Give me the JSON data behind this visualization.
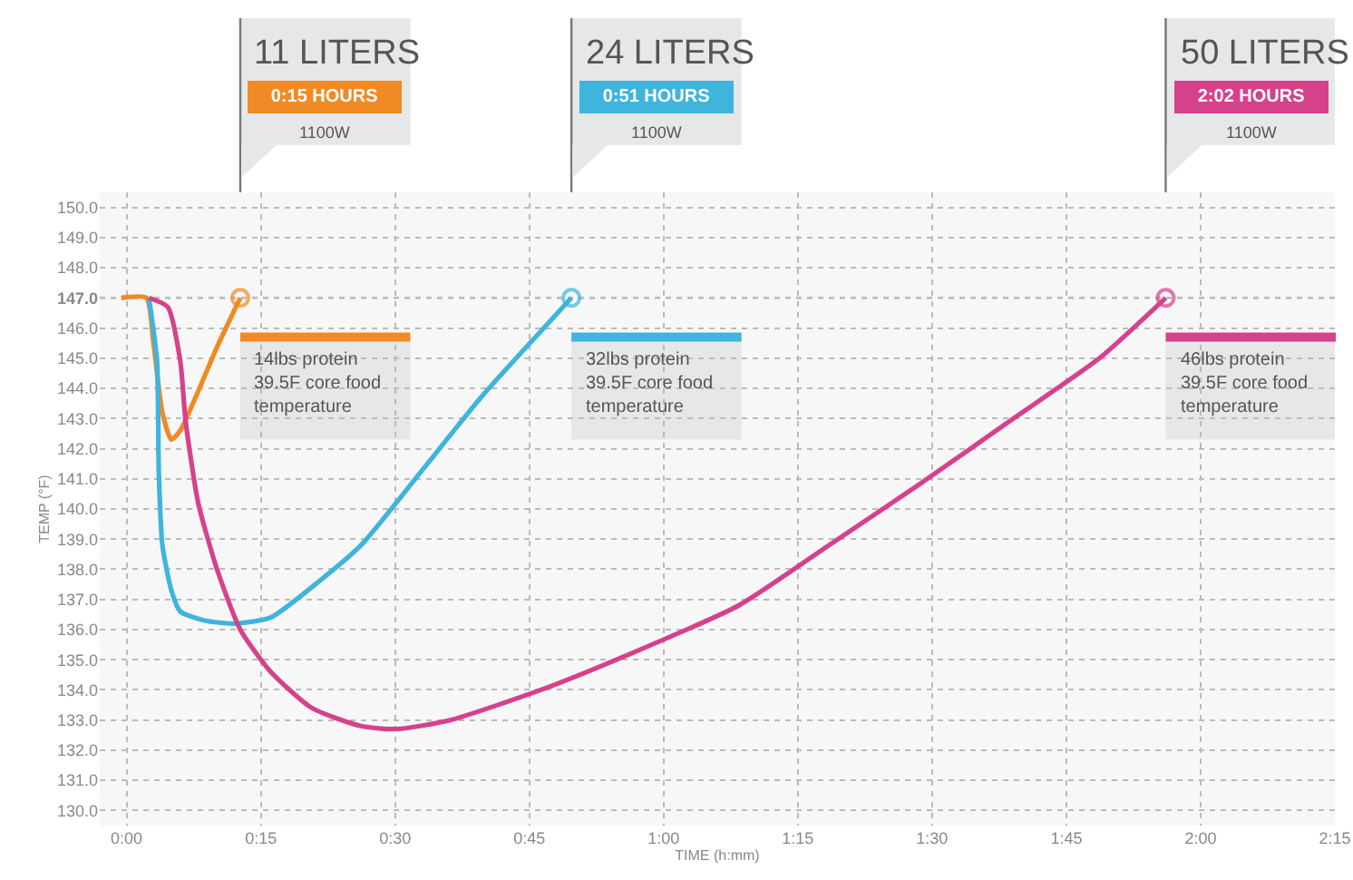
{
  "chart_data": {
    "type": "line",
    "xlabel": "TIME (h:mm)",
    "ylabel": "TEMP (°F)",
    "xlim": [
      -3,
      135
    ],
    "xticks": [
      {
        "value": 0,
        "label": "0:00"
      },
      {
        "value": 15,
        "label": "0:15"
      },
      {
        "value": 30,
        "label": "0:30"
      },
      {
        "value": 45,
        "label": "0:45"
      },
      {
        "value": 60,
        "label": "1:00"
      },
      {
        "value": 75,
        "label": "1:15"
      },
      {
        "value": 90,
        "label": "1:30"
      },
      {
        "value": 105,
        "label": "1:45"
      },
      {
        "value": 120,
        "label": "2:00"
      },
      {
        "value": 135,
        "label": "2:15"
      }
    ],
    "ylim": [
      129.5,
      150.5
    ],
    "yticks": [
      {
        "value": 130,
        "label": "130.0"
      },
      {
        "value": 131,
        "label": "131.0"
      },
      {
        "value": 132,
        "label": "132.0"
      },
      {
        "value": 133,
        "label": "133.0"
      },
      {
        "value": 134,
        "label": "134.0"
      },
      {
        "value": 135,
        "label": "135.0"
      },
      {
        "value": 136,
        "label": "136.0"
      },
      {
        "value": 137,
        "label": "137.0"
      },
      {
        "value": 138,
        "label": "138.0"
      },
      {
        "value": 139,
        "label": "139.0"
      },
      {
        "value": 140,
        "label": "140.0"
      },
      {
        "value": 141,
        "label": "141.0"
      },
      {
        "value": 142,
        "label": "142.0"
      },
      {
        "value": 143,
        "label": "143.0"
      },
      {
        "value": 144,
        "label": "144.0"
      },
      {
        "value": 145,
        "label": "145.0"
      },
      {
        "value": 146,
        "label": "146.0"
      },
      {
        "value": 147,
        "label": "147.0"
      },
      {
        "value": 148,
        "label": "148.0"
      },
      {
        "value": 149,
        "label": "149.0"
      },
      {
        "value": 150,
        "label": "150.0"
      }
    ],
    "grid": true,
    "line_style": "solid",
    "ref_lines": [
      {
        "axis": "y",
        "value": 147,
        "color": "#aaaaaa",
        "line_style": "dotted"
      }
    ],
    "series": [
      {
        "color": "#f08a24",
        "x": [
          -0.6,
          2.2,
          3,
          4,
          5,
          6,
          8,
          10,
          12.7
        ],
        "values": [
          147,
          147,
          145.5,
          143.2,
          142.3,
          142.6,
          143.9,
          145.3,
          147
        ]
      },
      {
        "color": "#3fb4dd",
        "x": [
          2.5,
          3.4,
          3.6,
          4,
          5,
          6,
          8.7,
          12.1,
          16.1,
          21.5,
          26.2,
          32.8,
          39.6,
          46.3,
          49.7
        ],
        "values": [
          147,
          144.9,
          141.2,
          138.8,
          137.3,
          136.6,
          136.3,
          136.2,
          136.4,
          137.6,
          138.8,
          141.2,
          143.7,
          145.9,
          147
        ]
      },
      {
        "color": "#d6418c",
        "x": [
          2.5,
          4.6,
          6,
          6.6,
          8,
          10.1,
          12.7,
          16.1,
          20.7,
          26.2,
          30.2,
          36.2,
          46.3,
          56.3,
          68.4,
          78.5,
          88.5,
          98.6,
          108.7,
          116.1
        ],
        "values": [
          147,
          146.7,
          144.9,
          142.9,
          140.2,
          138,
          136,
          134.6,
          133.4,
          132.8,
          132.7,
          133,
          134,
          135.2,
          136.8,
          138.8,
          140.8,
          142.9,
          145,
          147
        ]
      }
    ],
    "annotations": [
      "11 LITERS",
      "0:15 HOURS",
      "1100W",
      "14lbs protein\n39.5F core food\ntemperature",
      "24 LITERS",
      "0:51 HOURS",
      "1100W",
      "32lbs protein\n39.5F core food\ntemperature",
      "50 LITERS",
      "2:02 HOURS",
      "1100W",
      "46lbs protein\n39.5F core food\ntemperature"
    ]
  }
}
